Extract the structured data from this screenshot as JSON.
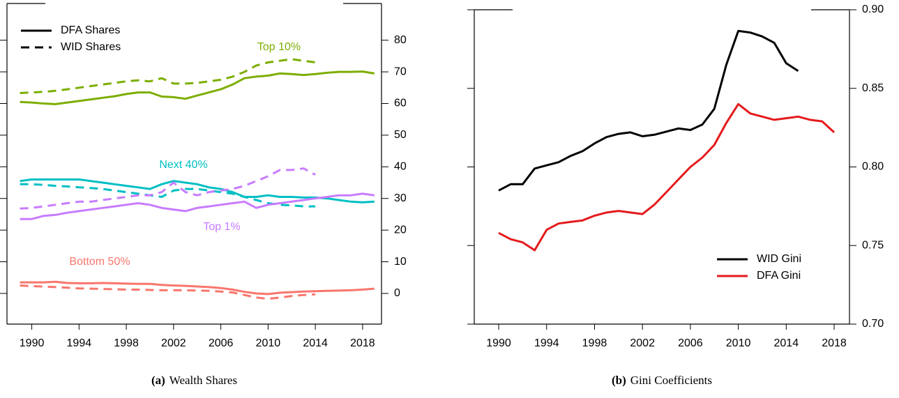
{
  "chart_data": [
    {
      "type": "line",
      "caption": {
        "label": "(a)",
        "text": "Wealth Shares"
      },
      "x": [
        1989,
        1990,
        1991,
        1992,
        1993,
        1994,
        1995,
        1996,
        1997,
        1998,
        1999,
        2000,
        2001,
        2002,
        2003,
        2004,
        2005,
        2006,
        2007,
        2008,
        2009,
        2010,
        2011,
        2012,
        2013,
        2014,
        2015,
        2016,
        2017,
        2018,
        2019
      ],
      "x_wid": [
        1989,
        1990,
        1991,
        1992,
        1993,
        1994,
        1995,
        1996,
        1997,
        1998,
        1999,
        2000,
        2001,
        2002,
        2003,
        2004,
        2005,
        2006,
        2007,
        2008,
        2009,
        2010,
        2011,
        2012,
        2013,
        2014
      ],
      "groups": [
        {
          "name": "Top 10%",
          "color": "#7cae00",
          "dfa": [
            60.5,
            60.3,
            60,
            59.8,
            60.3,
            60.8,
            61.3,
            61.8,
            62.3,
            63,
            63.5,
            63.5,
            62.2,
            62,
            61.5,
            62.5,
            63.5,
            64.5,
            66,
            68,
            68.5,
            68.8,
            69.5,
            69.3,
            69,
            69.3,
            69.7,
            70,
            70,
            70.1,
            69.5
          ],
          "wid": [
            63.3,
            63.5,
            63.7,
            64,
            64.5,
            65,
            65.5,
            66,
            66.5,
            67,
            67.3,
            67,
            68,
            66.3,
            66.3,
            66.5,
            67,
            67.5,
            68.5,
            70,
            72,
            73,
            73.5,
            74,
            73.5,
            73
          ]
        },
        {
          "name": "Next 40%",
          "color": "#00bfc4",
          "dfa": [
            35.5,
            36,
            36,
            36,
            36,
            36,
            35.5,
            35,
            34.5,
            34,
            33.5,
            33,
            34.5,
            35.5,
            35,
            34.5,
            33.5,
            33,
            32,
            30.5,
            30.5,
            31,
            30.5,
            30.5,
            30.3,
            30.3,
            30,
            29.5,
            29,
            28.8,
            29
          ],
          "wid": [
            34.5,
            34.5,
            34.3,
            34,
            33.8,
            33.5,
            33.3,
            33,
            32.5,
            32,
            31.5,
            31,
            30.5,
            32.5,
            33,
            33,
            32.5,
            32,
            31.5,
            30.5,
            29.5,
            28.5,
            28,
            27.8,
            27.5,
            27.5
          ]
        },
        {
          "name": "Top 1%",
          "color": "#c77cff",
          "dfa": [
            23.5,
            23.5,
            24.5,
            24.8,
            25.5,
            26,
            26.5,
            27,
            27.5,
            28,
            28.5,
            28,
            27,
            26.5,
            26,
            27,
            27.5,
            28,
            28.5,
            29,
            27,
            28,
            28.5,
            29,
            29.5,
            30,
            30.5,
            31,
            31,
            31.5,
            31
          ],
          "wid": [
            26.8,
            27,
            27.5,
            28,
            28.5,
            29,
            29,
            29.5,
            30,
            30.5,
            31,
            31,
            32,
            35,
            32,
            31,
            32,
            32.5,
            33,
            34,
            35.5,
            37,
            39,
            39,
            39.5,
            37.5
          ]
        },
        {
          "name": "Bottom 50%",
          "color": "#f8766d",
          "dfa": [
            3.5,
            3.5,
            3.5,
            3.7,
            3.3,
            3.2,
            3.2,
            3.3,
            3.2,
            3.1,
            3,
            3,
            2.7,
            2.5,
            2.4,
            2.2,
            2,
            1.7,
            1.2,
            0.5,
            0,
            -0.2,
            0.2,
            0.4,
            0.6,
            0.7,
            0.8,
            0.9,
            1,
            1.2,
            1.5
          ],
          "wid": [
            2.5,
            2.3,
            2.2,
            2,
            1.8,
            1.6,
            1.5,
            1.4,
            1.3,
            1.2,
            1.2,
            1.1,
            1,
            1,
            1,
            0.9,
            0.8,
            0.6,
            0.3,
            -0.5,
            -1.3,
            -1.7,
            -1.3,
            -0.8,
            -0.5,
            -0.3
          ]
        }
      ],
      "legend": [
        {
          "label": "DFA Shares",
          "dashed": false
        },
        {
          "label": "WID Shares",
          "dashed": true
        }
      ],
      "legend_position": "upper left",
      "xlim": [
        1987.9,
        2019.6
      ],
      "ylim": [
        -9.7,
        91.6
      ],
      "xticks": [
        1990,
        1994,
        1998,
        2002,
        2006,
        2010,
        2014,
        2018
      ],
      "yticks": [
        0,
        10,
        20,
        30,
        40,
        50,
        60,
        70,
        80
      ]
    },
    {
      "type": "line",
      "caption": {
        "label": "(b)",
        "text": "Gini Coefficients"
      },
      "series": [
        {
          "name": "WID Gini",
          "color": "#000000",
          "x": [
            1990,
            1991,
            1992,
            1993,
            1994,
            1995,
            1996,
            1997,
            1998,
            1999,
            2000,
            2001,
            2002,
            2003,
            2004,
            2005,
            2006,
            2007,
            2008,
            2009,
            2010,
            2011,
            2012,
            2013,
            2014,
            2015
          ],
          "values": [
            0.785,
            0.789,
            0.789,
            0.799,
            0.801,
            0.803,
            0.807,
            0.81,
            0.815,
            0.819,
            0.821,
            0.822,
            0.8195,
            0.8205,
            0.8225,
            0.8245,
            0.8235,
            0.827,
            0.837,
            0.865,
            0.8865,
            0.8855,
            0.883,
            0.879,
            0.866,
            0.861
          ]
        },
        {
          "name": "DFA Gini",
          "color": "#e41a1c",
          "x": [
            1990,
            1991,
            1992,
            1993,
            1994,
            1995,
            1996,
            1997,
            1998,
            1999,
            2000,
            2001,
            2002,
            2003,
            2004,
            2005,
            2006,
            2007,
            2008,
            2009,
            2010,
            2011,
            2012,
            2013,
            2014,
            2015,
            2016,
            2017,
            2018
          ],
          "values": [
            0.758,
            0.754,
            0.752,
            0.747,
            0.76,
            0.764,
            0.765,
            0.766,
            0.769,
            0.771,
            0.772,
            0.771,
            0.77,
            0.776,
            0.784,
            0.792,
            0.8,
            0.806,
            0.814,
            0.828,
            0.84,
            0.834,
            0.832,
            0.83,
            0.831,
            0.832,
            0.83,
            0.829,
            0.822
          ]
        }
      ],
      "legend_position": "lower right",
      "xlim": [
        1987.96,
        2019.28
      ],
      "ylim": [
        0.7,
        0.9
      ],
      "xticks": [
        1990,
        1994,
        1998,
        2002,
        2006,
        2010,
        2014,
        2018
      ],
      "yticks": [
        {
          "value": 0.7,
          "label": "0.70"
        },
        0.75,
        {
          "value": 0.8,
          "label": "0.80"
        },
        0.85,
        {
          "value": 0.9,
          "label": "0.90"
        }
      ]
    }
  ]
}
